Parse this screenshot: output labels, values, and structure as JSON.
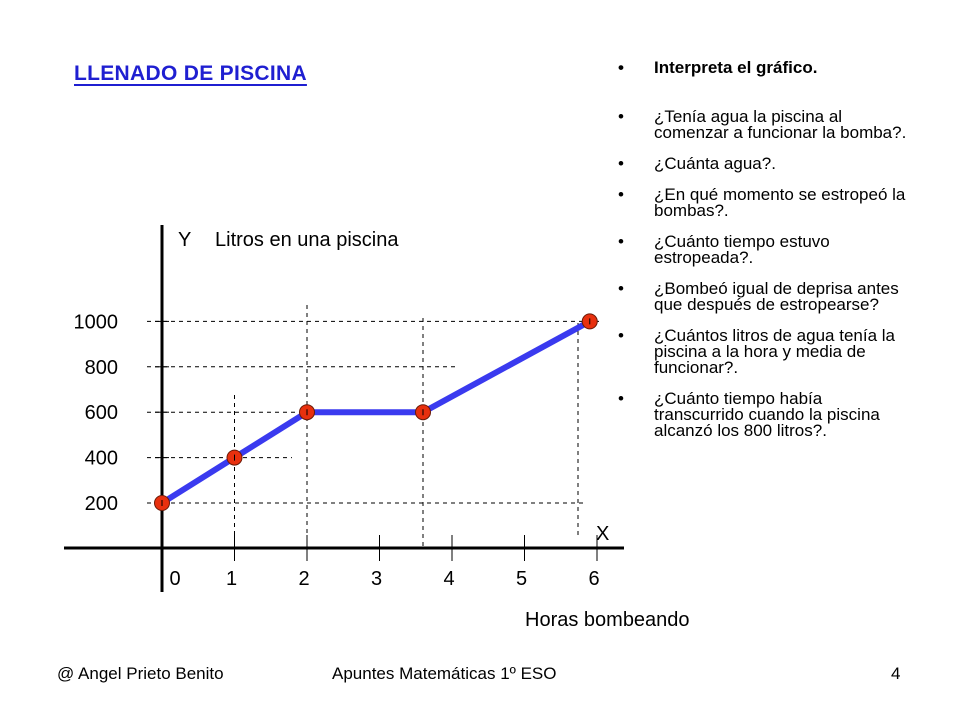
{
  "title": "LLENADO DE PISCINA",
  "questions": [
    "Interpreta el gráfico.",
    "¿Tenía agua la piscina al comenzar a funcionar la bomba?.",
    "¿Cuánta agua?.",
    "¿En qué momento se estropeó la bombas?.",
    "¿Cuánto tiempo estuvo estropeada?.",
    "¿Bombeó igual de deprisa antes que después de estropearse?",
    "¿Cuántos litros de agua tenía la piscina a la hora y media de funcionar?.",
    "¿Cuánto tiempo había transcurrido cuando la piscina alcanzó los 800 litros?."
  ],
  "chart_data": {
    "type": "line",
    "y_axis_letter": "Y",
    "ylabel": "Litros en una piscina",
    "x_axis_letter": "X",
    "xlabel": "Horas bombeando",
    "x_ticks": [
      0,
      1,
      2,
      3,
      4,
      5,
      6
    ],
    "y_ticks": [
      200,
      400,
      600,
      800,
      1000
    ],
    "xlim": [
      0,
      6
    ],
    "ylim": [
      0,
      1000
    ],
    "grid": "dashed",
    "points": [
      {
        "x": 0,
        "y": 200
      },
      {
        "x": 1,
        "y": 400
      },
      {
        "x": 2,
        "y": 600
      },
      {
        "x": 3.6,
        "y": 600
      },
      {
        "x": 5.9,
        "y": 1000
      }
    ],
    "line_color": "#3a3aef",
    "marker_color": "#e8300e"
  },
  "footer": {
    "author": "@  Angel Prieto Benito",
    "course": "Apuntes Matemáticas 1º ESO",
    "page": "4"
  }
}
